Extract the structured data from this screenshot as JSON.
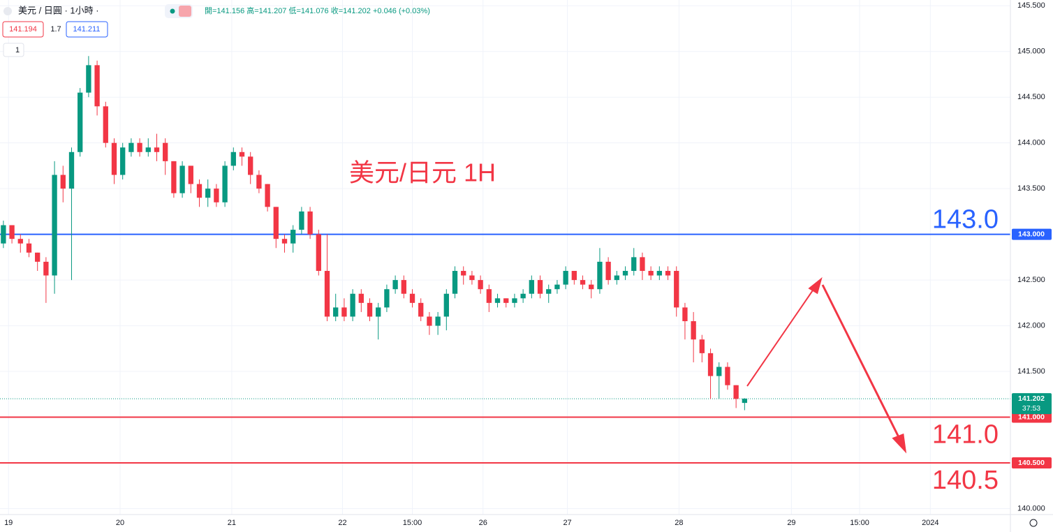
{
  "chart_data": {
    "type": "candlestick",
    "symbol_title": "美元 / 日圓 · 1小時 ·",
    "ohlc_text": "開=141.156 高=141.207 低=141.076 收=141.202 +0.046 (+0.03%)",
    "sell_price": "141.194",
    "spread": "1.7",
    "buy_price": "141.211",
    "lot": "1",
    "annotation": "美元/日元 1H",
    "up_color": "#089981",
    "down_color": "#f23645",
    "grid": true,
    "xlim": [
      -0.4,
      118.2
    ],
    "xticks": [
      {
        "value": 0.6,
        "label": "19"
      },
      {
        "value": 13.7,
        "label": "20"
      },
      {
        "value": 26.8,
        "label": "21"
      },
      {
        "value": 39.8,
        "label": "22"
      },
      {
        "value": 48.0,
        "label": "15:00"
      },
      {
        "value": 56.3,
        "label": "26"
      },
      {
        "value": 66.2,
        "label": "27"
      },
      {
        "value": 79.3,
        "label": "28"
      },
      {
        "value": 92.5,
        "label": "29"
      },
      {
        "value": 100.5,
        "label": "15:00"
      },
      {
        "value": 108.8,
        "label": "2024"
      }
    ],
    "ylim": [
      139.935,
      145.563
    ],
    "yticks": [
      {
        "value": 140.0,
        "label": "140.000"
      },
      {
        "value": 140.5,
        "label": "140.500"
      },
      {
        "value": 141.0,
        "label": "141.000"
      },
      {
        "value": 141.5,
        "label": "141.500"
      },
      {
        "value": 142.0,
        "label": "142.000"
      },
      {
        "value": 142.5,
        "label": "142.500"
      },
      {
        "value": 143.0,
        "label": "143.000"
      },
      {
        "value": 143.5,
        "label": "143.500"
      },
      {
        "value": 144.0,
        "label": "144.000"
      },
      {
        "value": 144.5,
        "label": "144.500"
      },
      {
        "value": 145.0,
        "label": "145.000"
      },
      {
        "value": 145.5,
        "label": "145.500"
      }
    ],
    "hlines": [
      {
        "value": 143.0,
        "label": "143.000",
        "annotation": "143.0",
        "color": "#2962ff"
      },
      {
        "value": 141.0,
        "label": "141.000",
        "annotation": "141.0",
        "color": "#f23645"
      },
      {
        "value": 140.5,
        "label": "140.500",
        "annotation": "140.5",
        "color": "#f23645"
      }
    ],
    "last_price": {
      "value": 141.202,
      "label": "141.202",
      "countdown": "37:53",
      "color": "#089981"
    },
    "x": [
      0,
      1,
      2,
      3,
      4,
      5,
      6,
      7,
      8,
      9,
      10,
      11,
      12,
      13,
      14,
      15,
      16,
      17,
      18,
      19,
      20,
      21,
      22,
      23,
      24,
      25,
      26,
      27,
      28,
      29,
      30,
      31,
      32,
      33,
      34,
      35,
      36,
      37,
      38,
      39,
      40,
      41,
      42,
      43,
      44,
      45,
      46,
      47,
      48,
      49,
      50,
      51,
      52,
      53,
      54,
      55,
      56,
      57,
      58,
      59,
      60,
      61,
      62,
      63,
      64,
      65,
      66,
      67,
      68,
      69,
      70,
      71,
      72,
      73,
      74,
      75,
      76,
      77,
      78,
      79,
      80,
      81,
      82,
      83,
      84,
      85,
      86,
      87
    ],
    "open": [
      142.9,
      143.1,
      142.95,
      142.9,
      142.8,
      142.7,
      142.55,
      143.65,
      143.5,
      143.9,
      144.55,
      144.85,
      144.4,
      144.0,
      143.65,
      143.9,
      144.0,
      143.9,
      143.95,
      144.0,
      143.8,
      143.45,
      143.75,
      143.55,
      143.4,
      143.5,
      143.35,
      143.75,
      143.9,
      143.85,
      143.65,
      143.55,
      143.3,
      142.95,
      142.9,
      143.05,
      143.25,
      143.0,
      142.6,
      142.1,
      142.2,
      142.1,
      142.35,
      142.25,
      142.1,
      142.2,
      142.4,
      142.5,
      142.35,
      142.25,
      142.1,
      142.0,
      142.1,
      142.35,
      142.6,
      142.55,
      142.5,
      142.4,
      142.25,
      142.3,
      142.25,
      142.3,
      142.35,
      142.5,
      142.35,
      142.4,
      142.45,
      142.6,
      142.5,
      142.45,
      142.4,
      142.7,
      142.5,
      142.55,
      142.6,
      142.75,
      142.6,
      142.55,
      142.6,
      142.6,
      142.2,
      142.05,
      141.85,
      141.7,
      141.45,
      141.55,
      141.35,
      141.156
    ],
    "high": [
      143.15,
      143.1,
      143.0,
      142.95,
      142.8,
      142.75,
      143.8,
      143.75,
      143.95,
      144.6,
      144.95,
      144.9,
      144.45,
      144.05,
      144.0,
      144.05,
      144.05,
      144.05,
      144.1,
      144.05,
      143.8,
      143.8,
      143.75,
      143.6,
      143.6,
      143.55,
      143.8,
      143.95,
      143.95,
      143.9,
      143.7,
      143.55,
      143.3,
      143.0,
      143.1,
      143.3,
      143.3,
      143.05,
      143.0,
      142.35,
      142.3,
      142.4,
      142.4,
      142.3,
      142.25,
      142.45,
      142.55,
      142.55,
      142.4,
      142.3,
      142.15,
      142.15,
      142.4,
      142.65,
      142.65,
      142.6,
      142.55,
      142.45,
      142.35,
      142.3,
      142.35,
      142.4,
      142.55,
      142.55,
      142.45,
      142.5,
      142.65,
      142.6,
      142.55,
      142.5,
      142.85,
      142.75,
      142.6,
      142.65,
      142.85,
      142.8,
      142.65,
      142.65,
      142.65,
      142.65,
      142.25,
      142.15,
      141.9,
      141.75,
      141.6,
      141.6,
      141.35,
      141.207
    ],
    "low": [
      142.85,
      142.9,
      142.8,
      142.75,
      142.6,
      142.25,
      142.35,
      143.35,
      142.5,
      143.85,
      144.5,
      144.3,
      143.95,
      143.55,
      143.6,
      143.85,
      143.85,
      143.85,
      143.8,
      143.65,
      143.4,
      143.4,
      143.45,
      143.3,
      143.3,
      143.3,
      143.3,
      143.7,
      143.75,
      143.55,
      143.45,
      143.25,
      142.85,
      142.8,
      142.8,
      143.0,
      142.95,
      142.55,
      142.05,
      142.05,
      142.05,
      142.05,
      142.15,
      142.05,
      141.85,
      142.15,
      142.35,
      142.3,
      142.2,
      142.05,
      141.9,
      141.9,
      141.95,
      142.3,
      142.45,
      142.45,
      142.35,
      142.15,
      142.2,
      142.2,
      142.2,
      142.25,
      142.3,
      142.3,
      142.25,
      142.35,
      142.4,
      142.45,
      142.4,
      142.3,
      142.35,
      142.45,
      142.45,
      142.5,
      142.55,
      142.5,
      142.5,
      142.5,
      142.5,
      142.1,
      141.85,
      141.6,
      141.6,
      141.2,
      141.2,
      141.3,
      141.1,
      141.076
    ],
    "close": [
      143.1,
      142.95,
      142.9,
      142.8,
      142.7,
      142.55,
      143.65,
      143.5,
      143.9,
      144.55,
      144.85,
      144.4,
      144.0,
      143.65,
      143.95,
      144.0,
      143.9,
      143.95,
      143.9,
      143.8,
      143.45,
      143.75,
      143.55,
      143.4,
      143.5,
      143.35,
      143.75,
      143.9,
      143.85,
      143.65,
      143.5,
      143.3,
      142.95,
      142.9,
      143.05,
      143.25,
      143.0,
      142.6,
      142.1,
      142.2,
      142.1,
      142.35,
      142.25,
      142.1,
      142.2,
      142.4,
      142.5,
      142.35,
      142.25,
      142.1,
      142.0,
      142.1,
      142.35,
      142.6,
      142.55,
      142.5,
      142.4,
      142.25,
      142.3,
      142.25,
      142.3,
      142.35,
      142.5,
      142.35,
      142.4,
      142.45,
      142.6,
      142.5,
      142.45,
      142.4,
      142.7,
      142.5,
      142.55,
      142.6,
      142.75,
      142.6,
      142.55,
      142.6,
      142.55,
      142.2,
      142.05,
      141.85,
      141.7,
      141.45,
      141.55,
      141.35,
      141.2,
      141.202
    ]
  }
}
